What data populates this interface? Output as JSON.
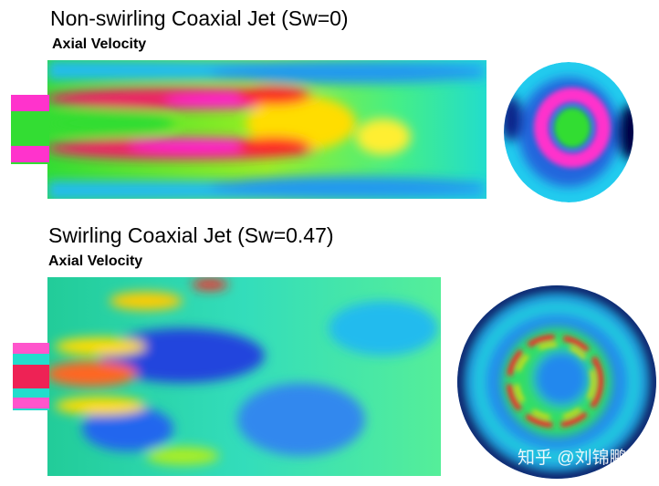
{
  "panels": [
    {
      "title": "Non-swirling Coaxial Jet (Sw=0)",
      "subtitle": "Axial Velocity"
    },
    {
      "title": "Swirling Coaxial Jet (Sw=0.47)",
      "subtitle": "Axial Velocity"
    }
  ],
  "watermark": "知乎 @刘锦鹏"
}
